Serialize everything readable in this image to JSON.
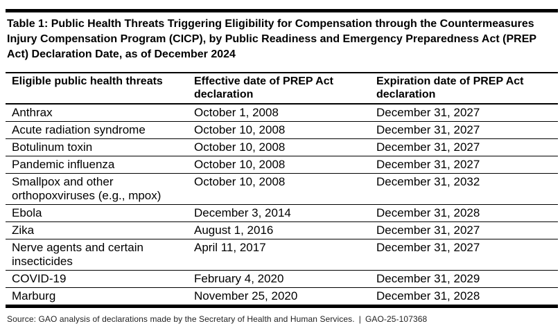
{
  "page": {
    "title": "Table 1: Public Health Threats Triggering Eligibility for Compensation through the Countermeasures Injury Compensation Program (CICP), by Public Readiness and Emergency Preparedness Act (PREP Act) Declaration Date, as of December 2024"
  },
  "table": {
    "columns": [
      "Eligible public health threats",
      "Effective date of PREP Act declaration",
      "Expiration date of PREP Act declaration"
    ],
    "rows": [
      [
        "Anthrax",
        "October 1, 2008",
        "December 31, 2027"
      ],
      [
        "Acute radiation syndrome",
        "October 10, 2008",
        "December 31, 2027"
      ],
      [
        "Botulinum toxin",
        "October 10, 2008",
        "December 31, 2027"
      ],
      [
        "Pandemic influenza",
        "October 10, 2008",
        "December 31, 2027"
      ],
      [
        "Smallpox and other orthopoxviruses (e.g., mpox)",
        "October 10, 2008",
        "December 31, 2032"
      ],
      [
        "Ebola",
        "December 3, 2014",
        "December 31, 2028"
      ],
      [
        "Zika",
        "August 1, 2016",
        "December 31, 2027"
      ],
      [
        "Nerve agents and certain insecticides",
        "April 11, 2017",
        "December 31, 2027"
      ],
      [
        "COVID-19",
        "February 4, 2020",
        "December 31, 2029"
      ],
      [
        "Marburg",
        "November 25, 2020",
        "December 31, 2028"
      ]
    ]
  },
  "footer": {
    "source": "Source: GAO analysis of declarations made by the Secretary of Health and Human Services.",
    "separator": "|",
    "report_id": "GAO-25-107368"
  },
  "colors": {
    "text": "#000000",
    "rule": "#000000",
    "background": "#ffffff"
  }
}
